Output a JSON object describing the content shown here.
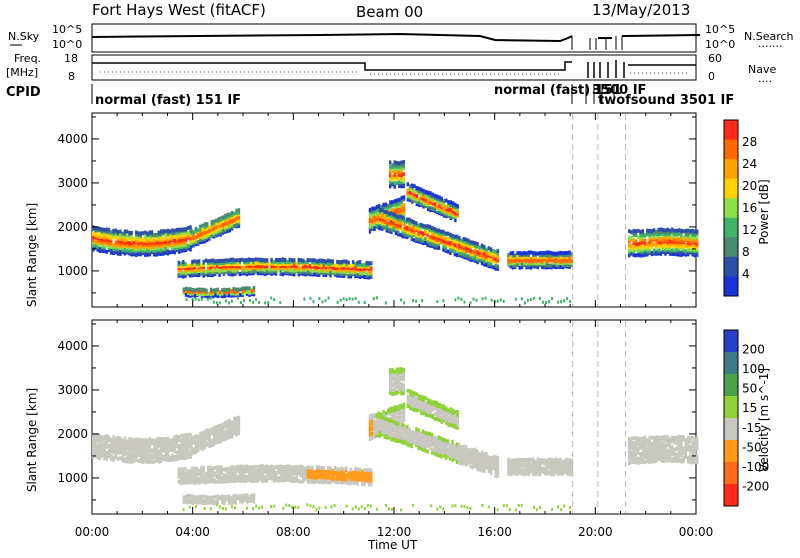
{
  "header": {
    "station": "Fort Hays West (fitACF)",
    "beam": "Beam 00",
    "date": "13/May/2013"
  },
  "noise_panel": {
    "left_label": "N.Sky",
    "right_label": "N.Search",
    "left_ticks": [
      "10^5",
      "10^0"
    ],
    "right_ticks": [
      "10^5",
      "10^0"
    ],
    "right_line": "·······"
  },
  "freq_panel": {
    "left_label_1": "Freq.",
    "left_label_2": "[MHz]",
    "right_label": "Nave",
    "left_ticks": [
      "18",
      "8"
    ],
    "right_ticks": [
      "60",
      "0"
    ],
    "right_line": "····"
  },
  "cpid": {
    "label": "CPID",
    "modes": [
      {
        "text": "normal (fast) 151 IF"
      },
      {
        "text": "normal (fast) 151"
      },
      {
        "text": "3500 IF"
      },
      {
        "text": "twofsound 3501 IF"
      }
    ]
  },
  "axes": {
    "xlabel": "Time UT",
    "ylabel_top": "Slant Range [km]",
    "ylabel_bottom": "Slant Range [km]",
    "x_ticks": [
      "00:00",
      "04:00",
      "08:00",
      "12:00",
      "16:00",
      "20:00",
      "00:00"
    ],
    "y_ticks": [
      "1000",
      "2000",
      "3000",
      "4000"
    ]
  },
  "chart_data": [
    {
      "type": "heatmap",
      "title": "",
      "xlabel": "Time UT",
      "ylabel": "Slant Range [km]",
      "xlim": [
        0,
        24
      ],
      "ylim": [
        180,
        4590
      ],
      "colorbar_label": "Power [dB]",
      "colorbar_ticks": [
        "28",
        "24",
        "20",
        "16",
        "12",
        "8",
        "4"
      ],
      "colorbar_colors": [
        "#ff2a1a",
        "#ff6a00",
        "#ffa200",
        "#ffd200",
        "#8fe04a",
        "#3fb36a",
        "#4a8a6e",
        "#2d4fa8",
        "#1a33d8"
      ],
      "notes": "Ionospheric backscatter bands"
    },
    {
      "type": "heatmap",
      "title": "",
      "xlabel": "Time UT",
      "ylabel": "Slant Range [km]",
      "xlim": [
        0,
        24
      ],
      "ylim": [
        180,
        4590
      ],
      "colorbar_label": "Velocity [m s^-1]",
      "colorbar_ticks": [
        "200",
        "100",
        "50",
        "15",
        "-15",
        "-50",
        "-100",
        "-200"
      ],
      "colorbar_colors": [
        "#2a3fc8",
        "#3f7a8a",
        "#4aa34a",
        "#8fd23a",
        "#c8c8c0",
        "#ff9a1a",
        "#ff6a1a",
        "#ff2a1a"
      ]
    }
  ]
}
